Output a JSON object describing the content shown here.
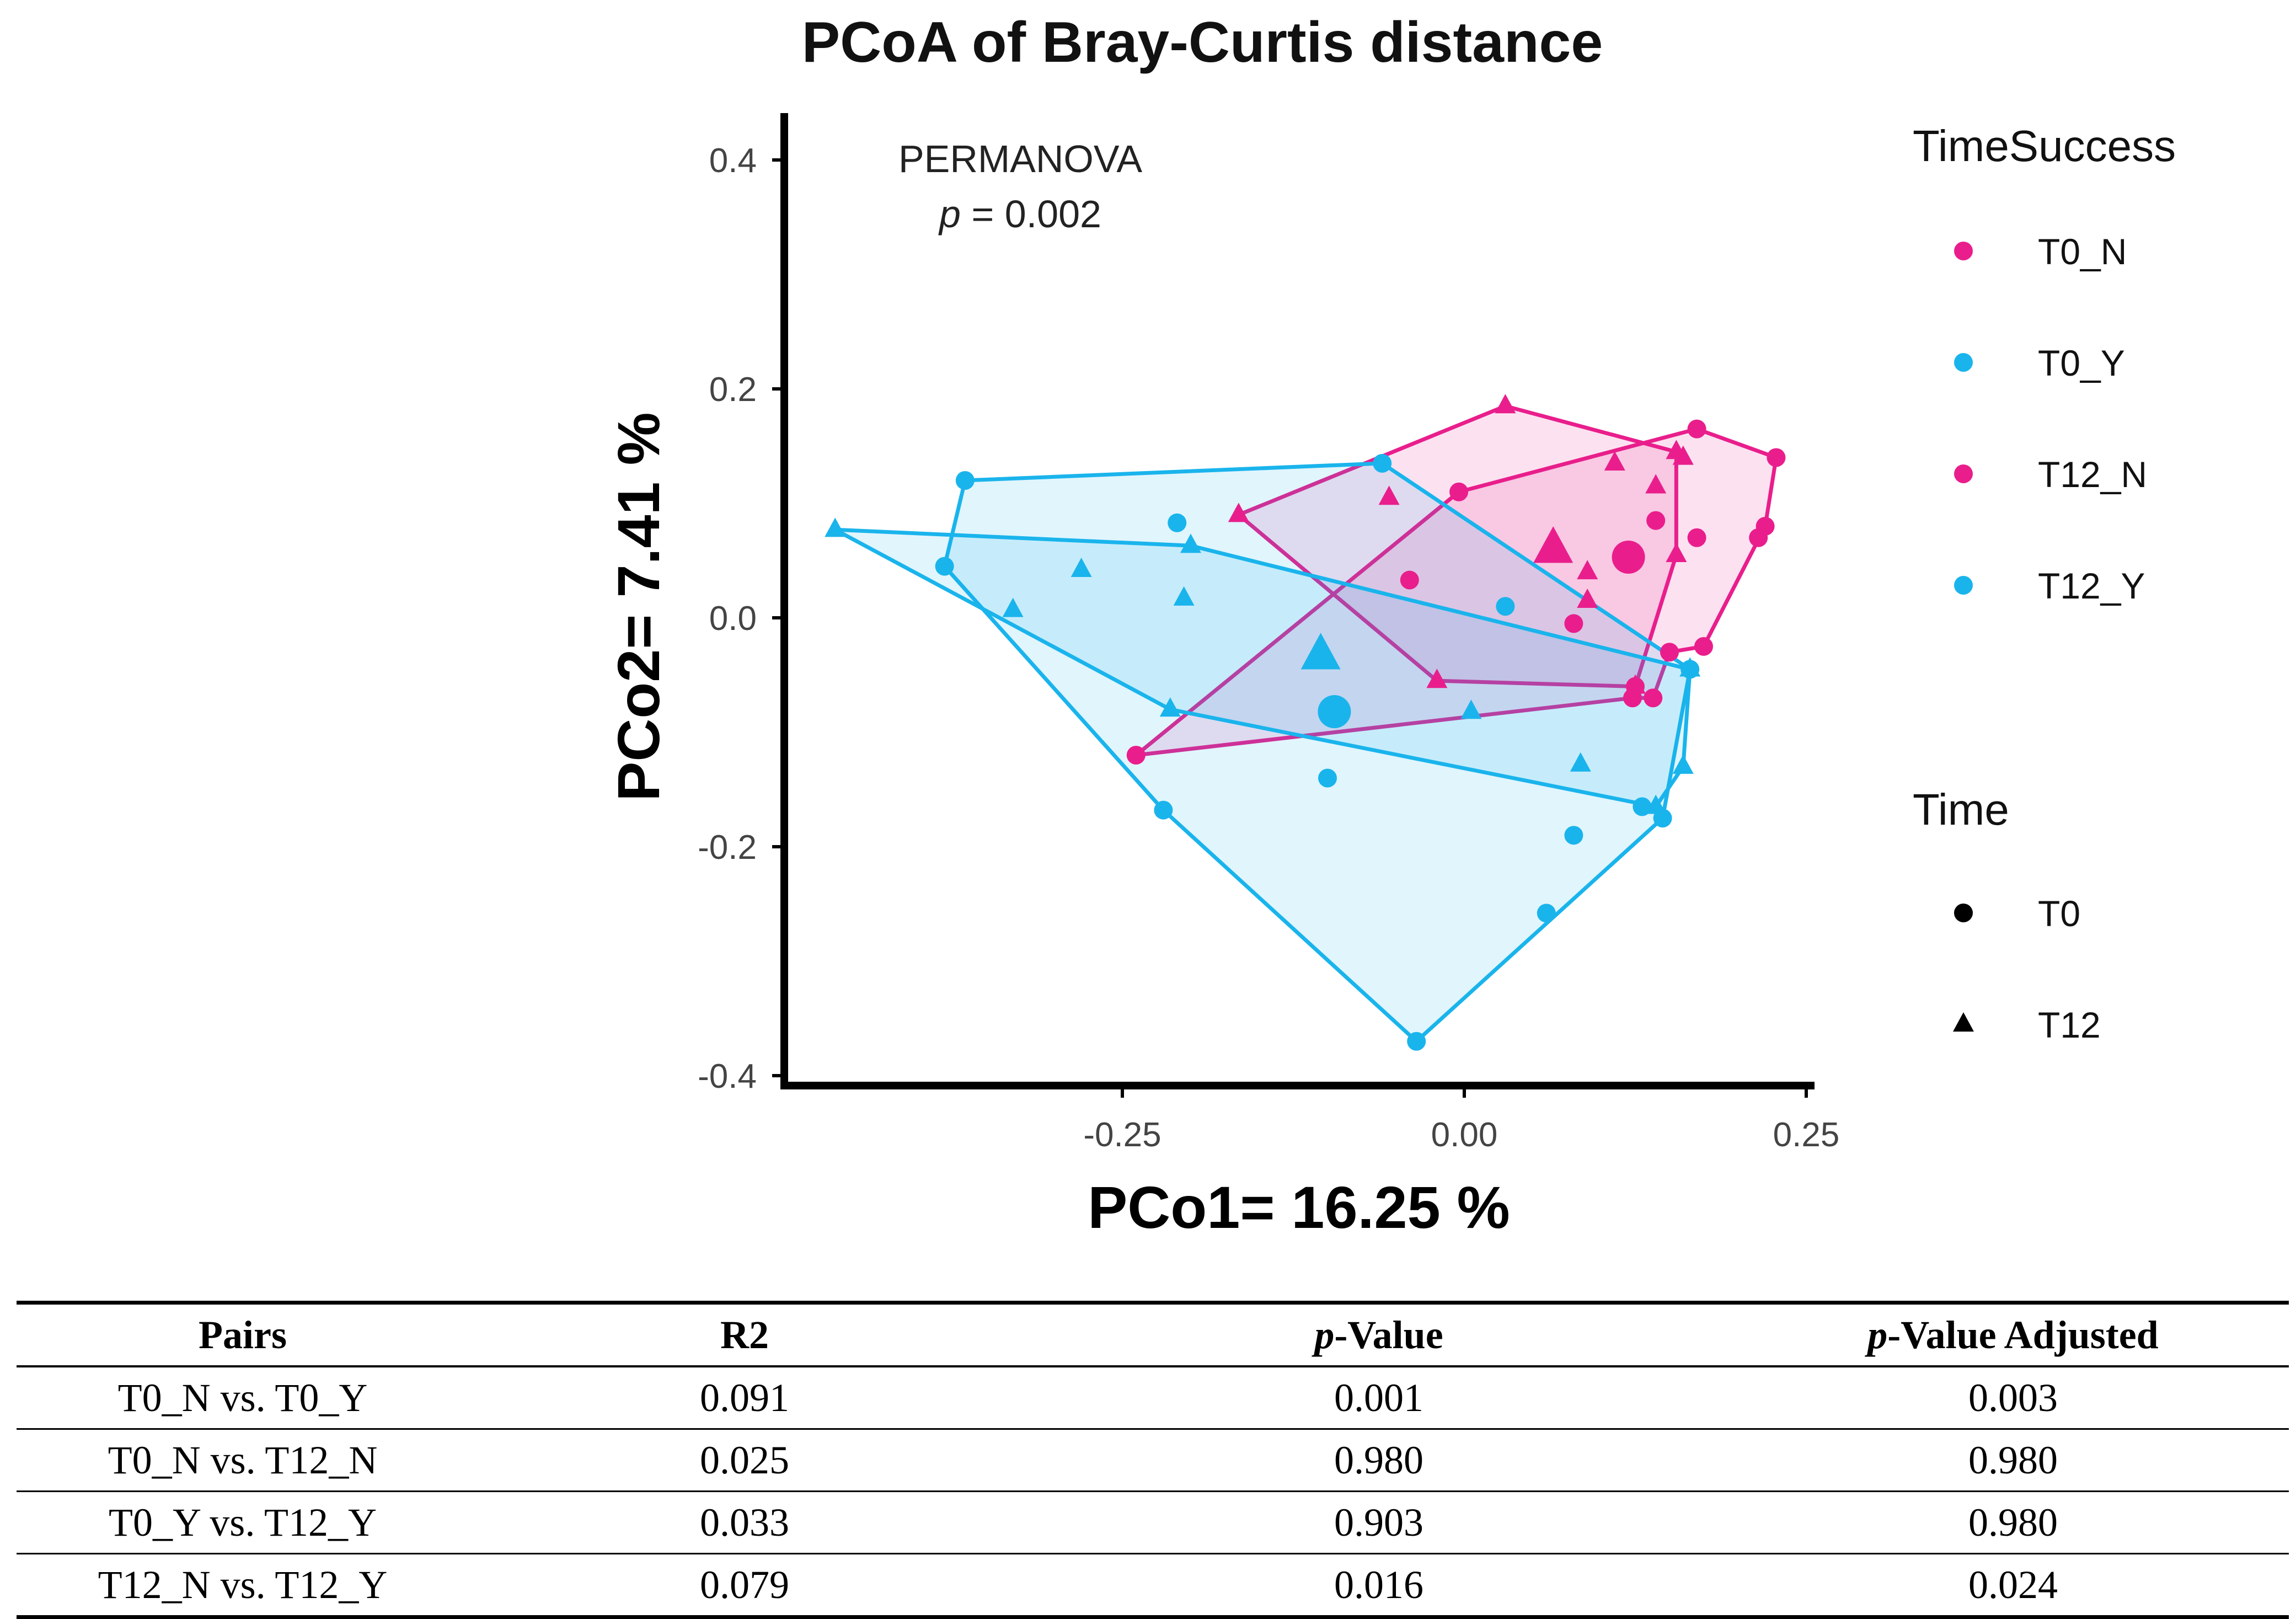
{
  "chart_data": {
    "type": "scatter",
    "title": "PCoA of Bray-Curtis distance",
    "xlabel": "PCo1= 16.25 %",
    "ylabel": "PCo2= 7.41 %",
    "xlim": [
      -0.5,
      0.25
    ],
    "ylim": [
      -0.4,
      0.4
    ],
    "xticks": [
      -0.25,
      0.0,
      0.25
    ],
    "xtick_labels": [
      "-0.25",
      "0.00",
      "0.25"
    ],
    "yticks": [
      0.4,
      0.2,
      0.0,
      -0.2,
      -0.4
    ],
    "ytick_labels": [
      "0.4",
      "0.2",
      "0.0",
      "-0.2",
      "-0.4"
    ],
    "annotation": {
      "line1": "PERMANOVA",
      "p_symbol": "p",
      "p_text": " = 0.002"
    },
    "legend": {
      "color_title": "TimeSuccess",
      "color_items": [
        {
          "label": "T0_N",
          "color": "#e91e8c"
        },
        {
          "label": "T0_Y",
          "color": "#1ab4ec"
        },
        {
          "label": "T12_N",
          "color": "#e91e8c"
        },
        {
          "label": "T12_Y",
          "color": "#1ab4ec"
        }
      ],
      "shape_title": "Time",
      "shape_items": [
        {
          "label": "T0",
          "shape": "circle"
        },
        {
          "label": "T12",
          "shape": "triangle"
        }
      ]
    },
    "series": [
      {
        "name": "T0_N",
        "color": "#e91e8c",
        "shape": "circle",
        "points": [
          [
            -0.24,
            -0.12
          ],
          [
            -0.004,
            0.11
          ],
          [
            -0.04,
            0.033
          ],
          [
            0.17,
            0.165
          ],
          [
            0.228,
            0.14
          ],
          [
            0.22,
            0.08
          ],
          [
            0.215,
            0.07
          ],
          [
            0.17,
            0.07
          ],
          [
            0.15,
            -0.03
          ],
          [
            0.138,
            -0.07
          ],
          [
            0.125,
            -0.06
          ],
          [
            0.123,
            -0.07
          ],
          [
            0.14,
            0.085
          ],
          [
            0.08,
            -0.005
          ],
          [
            0.175,
            -0.025
          ]
        ],
        "centroid": [
          0.12,
          0.053
        ]
      },
      {
        "name": "T12_N",
        "color": "#e91e8c",
        "shape": "triangle",
        "points": [
          [
            -0.165,
            0.09
          ],
          [
            0.03,
            0.185
          ],
          [
            0.16,
            0.14
          ],
          [
            0.11,
            0.135
          ],
          [
            -0.055,
            0.105
          ],
          [
            0.14,
            0.115
          ],
          [
            0.155,
            0.145
          ],
          [
            0.155,
            0.055
          ],
          [
            0.09,
            0.04
          ],
          [
            0.09,
            0.015
          ],
          [
            -0.02,
            -0.055
          ],
          [
            0.125,
            -0.06
          ]
        ],
        "centroid": [
          0.065,
          0.06
        ]
      },
      {
        "name": "T0_Y",
        "color": "#1ab4ec",
        "shape": "circle",
        "points": [
          [
            -0.365,
            0.12
          ],
          [
            -0.38,
            0.045
          ],
          [
            -0.21,
            0.083
          ],
          [
            -0.06,
            0.135
          ],
          [
            0.03,
            0.01
          ],
          [
            -0.22,
            -0.168
          ],
          [
            -0.035,
            -0.37
          ],
          [
            0.06,
            -0.258
          ],
          [
            0.08,
            -0.19
          ],
          [
            -0.1,
            -0.14
          ],
          [
            0.13,
            -0.165
          ],
          [
            0.145,
            -0.175
          ],
          [
            0.165,
            -0.045
          ]
        ],
        "centroid": [
          -0.095,
          -0.082
        ]
      },
      {
        "name": "T12_Y",
        "color": "#1ab4ec",
        "shape": "triangle",
        "points": [
          [
            -0.46,
            0.077
          ],
          [
            -0.2,
            0.063
          ],
          [
            -0.28,
            0.042
          ],
          [
            -0.205,
            0.017
          ],
          [
            -0.33,
            0.007
          ],
          [
            -0.215,
            -0.08
          ],
          [
            0.005,
            -0.082
          ],
          [
            0.085,
            -0.128
          ],
          [
            0.16,
            -0.13
          ],
          [
            0.165,
            -0.045
          ],
          [
            0.14,
            -0.165
          ]
        ],
        "centroid": [
          -0.105,
          -0.033
        ]
      }
    ],
    "hulls": [
      {
        "name": "T0_N",
        "color": "#e91e8c",
        "points": [
          [
            -0.24,
            -0.12
          ],
          [
            -0.004,
            0.11
          ],
          [
            0.17,
            0.165
          ],
          [
            0.228,
            0.14
          ],
          [
            0.22,
            0.08
          ],
          [
            0.175,
            -0.025
          ],
          [
            0.15,
            -0.03
          ],
          [
            0.138,
            -0.07
          ],
          [
            0.123,
            -0.07
          ]
        ]
      },
      {
        "name": "T12_N",
        "color": "#e91e8c",
        "points": [
          [
            -0.165,
            0.09
          ],
          [
            0.03,
            0.185
          ],
          [
            0.155,
            0.145
          ],
          [
            0.155,
            0.055
          ],
          [
            0.125,
            -0.06
          ],
          [
            -0.02,
            -0.055
          ]
        ]
      },
      {
        "name": "T0_Y",
        "color": "#1ab4ec",
        "points": [
          [
            -0.365,
            0.12
          ],
          [
            -0.06,
            0.135
          ],
          [
            0.165,
            -0.045
          ],
          [
            0.145,
            -0.175
          ],
          [
            -0.035,
            -0.37
          ],
          [
            -0.22,
            -0.168
          ],
          [
            -0.38,
            0.045
          ]
        ]
      },
      {
        "name": "T12_Y",
        "color": "#1ab4ec",
        "points": [
          [
            -0.46,
            0.077
          ],
          [
            -0.2,
            0.063
          ],
          [
            0.165,
            -0.045
          ],
          [
            0.16,
            -0.13
          ],
          [
            0.14,
            -0.165
          ],
          [
            -0.215,
            -0.08
          ]
        ]
      }
    ]
  },
  "table": {
    "headers": [
      {
        "plain": "Pairs",
        "italic": "",
        "rest": ""
      },
      {
        "plain": "R2",
        "italic": "",
        "rest": ""
      },
      {
        "plain": "",
        "italic": "p",
        "rest": "-Value"
      },
      {
        "plain": "",
        "italic": "p",
        "rest": "-Value Adjusted"
      }
    ],
    "rows": [
      [
        "T0_N vs. T0_Y",
        "0.091",
        "0.001",
        "0.003"
      ],
      [
        "T0_N vs. T12_N",
        "0.025",
        "0.980",
        "0.980"
      ],
      [
        "T0_Y vs. T12_Y",
        "0.033",
        "0.903",
        "0.980"
      ],
      [
        "T12_N vs. T12_Y",
        "0.079",
        "0.016",
        "0.024"
      ]
    ]
  }
}
